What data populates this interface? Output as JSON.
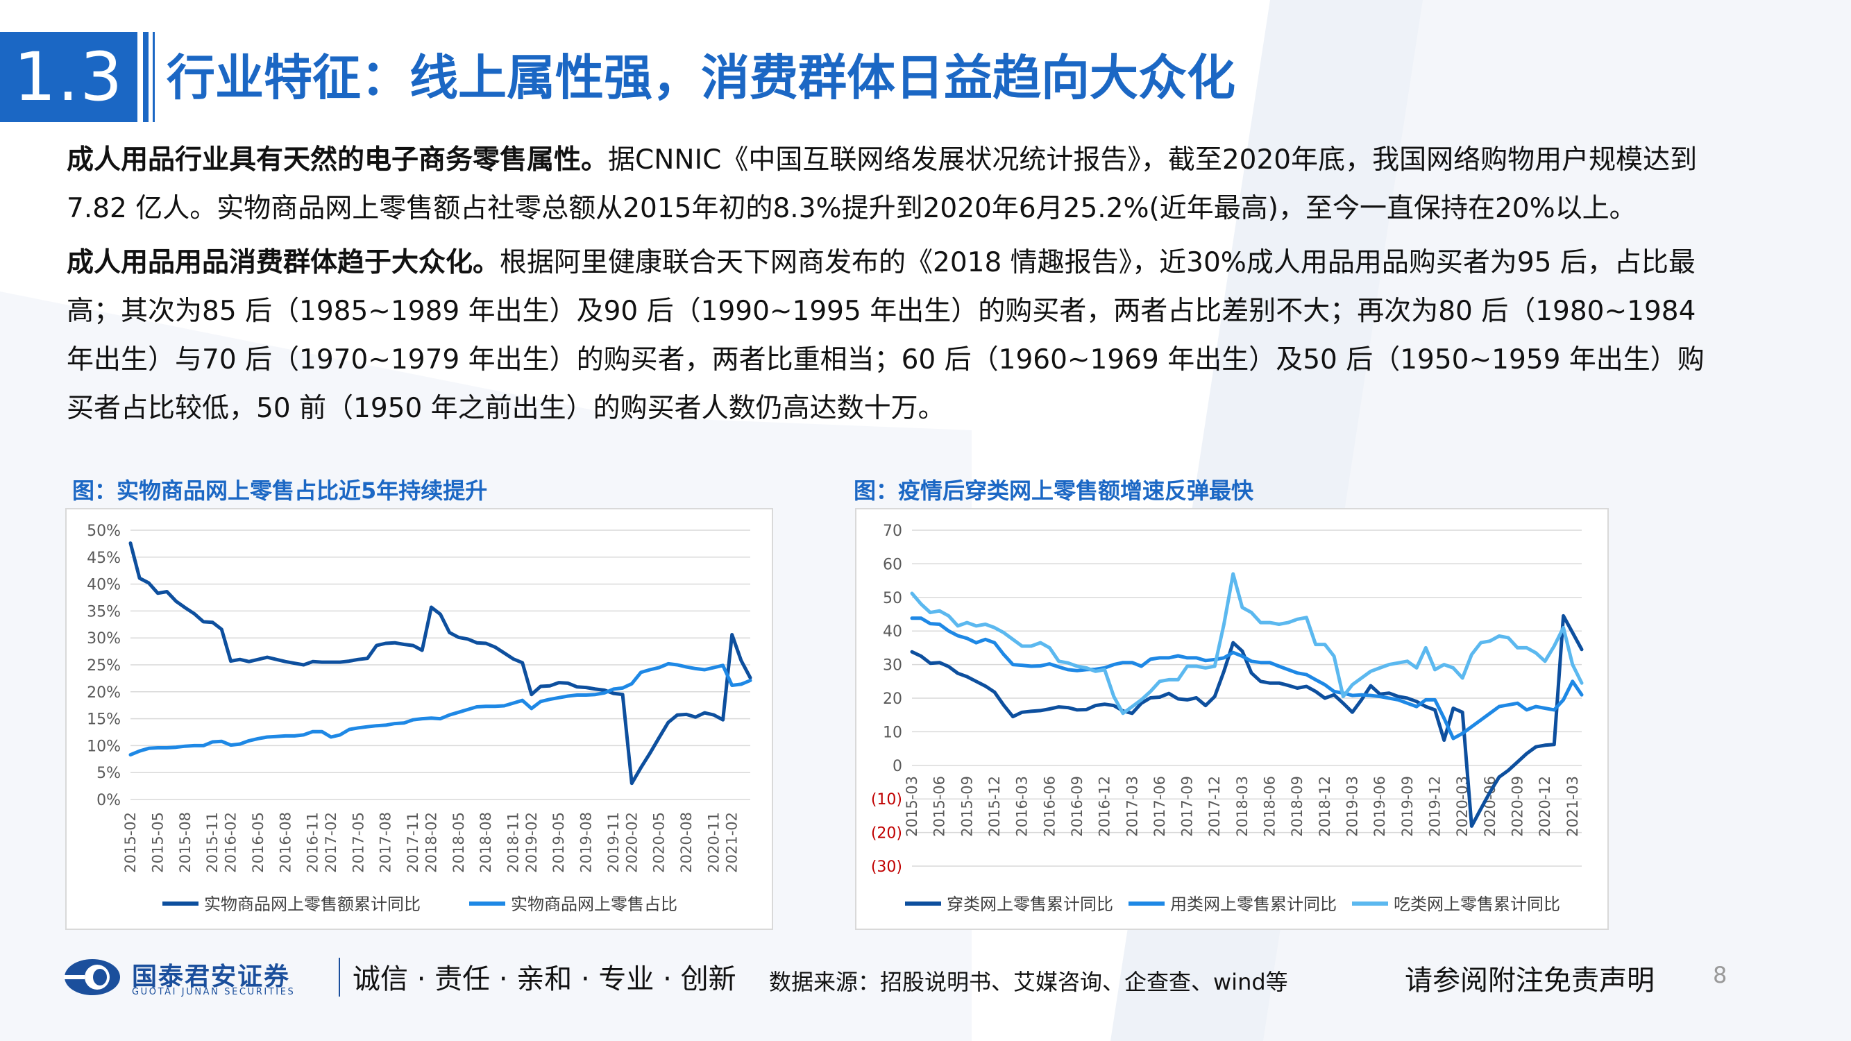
{
  "header": {
    "section_number": "1.3",
    "title": "行业特征：线上属性强，消费群体日益趋向大众化"
  },
  "paragraphs": [
    {
      "lead": "成人用品行业具有天然的电子商务零售属性。",
      "text": "据CNNIC《中国互联网络发展状况统计报告》，截至2020年底，我国网络购物用户规模达到7.82 亿人。实物商品网上零售额占社零总额从2015年初的8.3%提升到2020年6月25.2%(近年最高)，至今一直保持在20%以上。"
    },
    {
      "lead": "成人用品用品消费群体趋于大众化。",
      "text": "根据阿里健康联合天下网商发布的《2018 情趣报告》，近30%成人用品用品购买者为95 后，占比最高；其次为85 后（1985~1989 年出生）及90 后（1990~1995 年出生）的购买者，两者占比差别不大；再次为80 后（1980~1984 年出生）与70 后（1970~1979 年出生）的购买者，两者比重相当；60 后（1960~1969 年出生）及50 后（1950~1959 年出生）购买者占比较低，50 前（1950 年之前出生）的购买者人数仍高达数十万。"
    }
  ],
  "chart_titles": {
    "left": "图：实物商品网上零售占比近5年持续提升",
    "right": "图：疫情后穿类网上零售额增速反弹最快"
  },
  "chart_data": [
    {
      "type": "line",
      "x": [
        "2015-02",
        "2015-03",
        "2015-04",
        "2015-05",
        "2015-06",
        "2015-07",
        "2015-08",
        "2015-09",
        "2015-10",
        "2015-11",
        "2015-12",
        "2016-02",
        "2016-03",
        "2016-04",
        "2016-05",
        "2016-06",
        "2016-07",
        "2016-08",
        "2016-09",
        "2016-10",
        "2016-11",
        "2016-12",
        "2017-02",
        "2017-03",
        "2017-04",
        "2017-05",
        "2017-06",
        "2017-07",
        "2017-08",
        "2017-09",
        "2017-10",
        "2017-11",
        "2017-12",
        "2018-02",
        "2018-03",
        "2018-04",
        "2018-05",
        "2018-06",
        "2018-07",
        "2018-08",
        "2018-09",
        "2018-10",
        "2018-11",
        "2018-12",
        "2019-02",
        "2019-03",
        "2019-04",
        "2019-05",
        "2019-06",
        "2019-07",
        "2019-08",
        "2019-09",
        "2019-10",
        "2019-11",
        "2019-12",
        "2020-02",
        "2020-03",
        "2020-04",
        "2020-05",
        "2020-06",
        "2020-07",
        "2020-08",
        "2020-09",
        "2020-10",
        "2020-11",
        "2020-12",
        "2021-02",
        "2021-03",
        "2021-04"
      ],
      "x_tick_labels": [
        "2015-02",
        "2015-05",
        "2015-08",
        "2015-11",
        "2016-02",
        "2016-05",
        "2016-08",
        "2016-11",
        "2017-02",
        "2017-05",
        "2017-08",
        "2017-11",
        "2018-02",
        "2018-05",
        "2018-08",
        "2018-11",
        "2019-02",
        "2019-05",
        "2019-08",
        "2019-11",
        "2020-02",
        "2020-05",
        "2020-08",
        "2020-11",
        "2021-02"
      ],
      "y_tick_labels": [
        "50%",
        "45%",
        "40%",
        "35%",
        "30%",
        "25%",
        "20%",
        "15%",
        "10%",
        "5%",
        "0%"
      ],
      "ylim": [
        0,
        50
      ],
      "grid": "horizontal",
      "legend_position": "bottom",
      "series": [
        {
          "name": "实物商品网上零售额累计同比",
          "color": "#0d4f9e",
          "values": [
            47.6,
            41.1,
            40.2,
            38.3,
            38.6,
            36.8,
            35.6,
            34.5,
            33.0,
            32.9,
            31.6,
            25.7,
            26.0,
            25.6,
            26.0,
            26.4,
            26.0,
            25.6,
            25.3,
            25.0,
            25.6,
            25.5,
            25.5,
            25.5,
            25.7,
            26.0,
            26.2,
            28.6,
            29.0,
            29.1,
            28.8,
            28.6,
            27.7,
            35.7,
            34.4,
            31.0,
            30.1,
            29.8,
            29.1,
            29.0,
            28.3,
            27.2,
            26.1,
            25.4,
            19.5,
            21.0,
            21.1,
            21.7,
            21.6,
            20.9,
            20.8,
            20.5,
            20.3,
            19.7,
            19.5,
            3.0,
            5.9,
            8.6,
            11.5,
            14.3,
            15.7,
            15.8,
            15.3,
            16.1,
            15.7,
            14.8,
            30.6,
            25.8,
            22.6
          ]
        },
        {
          "name": "实物商品网上零售占比",
          "color": "#1e88e5",
          "values": [
            8.3,
            9.0,
            9.5,
            9.6,
            9.6,
            9.7,
            9.9,
            10.0,
            10.0,
            10.7,
            10.8,
            10.1,
            10.3,
            10.9,
            11.3,
            11.6,
            11.7,
            11.8,
            11.8,
            12.0,
            12.6,
            12.6,
            11.6,
            12.0,
            13.0,
            13.3,
            13.5,
            13.7,
            13.8,
            14.1,
            14.2,
            14.8,
            15.0,
            15.1,
            15.0,
            15.7,
            16.2,
            16.7,
            17.2,
            17.3,
            17.3,
            17.4,
            17.9,
            18.4,
            16.9,
            18.2,
            18.6,
            18.9,
            19.2,
            19.4,
            19.4,
            19.5,
            19.8,
            20.5,
            20.7,
            21.5,
            23.6,
            24.1,
            24.5,
            25.2,
            25.0,
            24.6,
            24.3,
            24.1,
            24.5,
            24.9,
            21.2,
            21.4,
            22.1
          ]
        }
      ]
    },
    {
      "type": "line",
      "x": [
        "2015-03",
        "2015-04",
        "2015-05",
        "2015-06",
        "2015-07",
        "2015-08",
        "2015-09",
        "2015-10",
        "2015-11",
        "2015-12",
        "2016-01",
        "2016-02",
        "2016-03",
        "2016-04",
        "2016-05",
        "2016-06",
        "2016-07",
        "2016-08",
        "2016-09",
        "2016-10",
        "2016-11",
        "2016-12",
        "2017-01",
        "2017-02",
        "2017-03",
        "2017-04",
        "2017-05",
        "2017-06",
        "2017-07",
        "2017-08",
        "2017-09",
        "2017-10",
        "2017-11",
        "2017-12",
        "2018-01",
        "2018-02",
        "2018-03",
        "2018-04",
        "2018-05",
        "2018-06",
        "2018-07",
        "2018-08",
        "2018-09",
        "2018-10",
        "2018-11",
        "2018-12",
        "2019-01",
        "2019-02",
        "2019-03",
        "2019-04",
        "2019-05",
        "2019-06",
        "2019-07",
        "2019-08",
        "2019-09",
        "2019-10",
        "2019-11",
        "2019-12",
        "2020-01",
        "2020-02",
        "2020-03",
        "2020-04",
        "2020-05",
        "2020-06",
        "2020-07",
        "2020-08",
        "2020-09",
        "2020-10",
        "2020-11",
        "2020-12",
        "2021-01",
        "2021-02",
        "2021-03",
        "2021-04"
      ],
      "x_tick_labels": [
        "2015-03",
        "2015-06",
        "2015-09",
        "2015-12",
        "2016-03",
        "2016-06",
        "2016-09",
        "2016-12",
        "2017-03",
        "2017-06",
        "2017-09",
        "2017-12",
        "2018-03",
        "2018-06",
        "2018-09",
        "2018-12",
        "2019-03",
        "2019-06",
        "2019-09",
        "2019-12",
        "2020-03",
        "2020-06",
        "2020-09",
        "2020-12",
        "2021-03"
      ],
      "y_tick_labels": [
        "70",
        "60",
        "50",
        "40",
        "30",
        "20",
        "10",
        "0",
        "(10)",
        "(20)",
        "(30)"
      ],
      "negative_label_color": "#c00000",
      "ylim": [
        -30,
        70
      ],
      "grid": "horizontal",
      "legend_position": "bottom",
      "series": [
        {
          "name": "穿类网上零售累计同比",
          "color": "#0d4f9e",
          "values": [
            33.8,
            32.5,
            30.4,
            30.6,
            29.4,
            27.4,
            26.4,
            25.0,
            23.6,
            21.8,
            17.9,
            14.5,
            15.8,
            16.1,
            16.3,
            16.8,
            17.4,
            17.2,
            16.5,
            16.6,
            17.8,
            18.2,
            17.8,
            16.2,
            15.5,
            18.5,
            20.1,
            20.3,
            21.4,
            19.8,
            19.5,
            20.1,
            17.8,
            20.5,
            28.0,
            36.5,
            34.0,
            27.5,
            25.0,
            24.5,
            24.5,
            23.8,
            23.0,
            23.5,
            22.0,
            20.0,
            21.0,
            18.5,
            15.8,
            19.5,
            23.7,
            21.2,
            21.5,
            20.5,
            20.0,
            19.0,
            17.5,
            16.5,
            7.5,
            17.0,
            15.8,
            -18.1,
            -13.0,
            -8.0,
            -3.5,
            -1.5,
            1.0,
            3.5,
            5.5,
            6.0,
            6.2,
            44.5,
            39.5,
            34.5
          ]
        },
        {
          "name": "用类网上零售累计同比",
          "color": "#1e88e5",
          "values": [
            43.8,
            43.8,
            42.2,
            42.0,
            40.0,
            38.6,
            37.8,
            36.5,
            37.5,
            36.5,
            33.0,
            30.0,
            29.8,
            29.5,
            29.6,
            30.2,
            29.3,
            28.5,
            28.2,
            28.5,
            28.6,
            29.0,
            30.0,
            30.6,
            30.6,
            29.5,
            31.6,
            32.0,
            32.0,
            32.6,
            32.0,
            32.0,
            31.2,
            31.5,
            32.0,
            33.6,
            32.5,
            31.0,
            30.6,
            30.6,
            29.5,
            28.5,
            27.5,
            27.0,
            25.5,
            24.0,
            22.0,
            21.5,
            20.8,
            21.0,
            20.8,
            20.5,
            20.0,
            19.5,
            18.5,
            17.5,
            19.5,
            19.5,
            14.0,
            8.0,
            9.5,
            11.5,
            13.5,
            15.5,
            17.5,
            18.0,
            18.5,
            16.5,
            17.5,
            17.0,
            16.5,
            19.5,
            25.0,
            21.0
          ]
        },
        {
          "name": "吃类网上零售累计同比",
          "color": "#5bb8ef",
          "values": [
            51.2,
            48.0,
            45.5,
            46.0,
            44.5,
            41.5,
            42.5,
            41.5,
            42.0,
            41.0,
            39.5,
            37.5,
            35.5,
            35.5,
            36.5,
            35.0,
            31.0,
            30.5,
            29.5,
            29.0,
            28.0,
            28.5,
            20.5,
            15.5,
            17.5,
            19.5,
            22.0,
            25.0,
            25.5,
            25.5,
            29.5,
            29.5,
            29.0,
            29.5,
            42.0,
            57.0,
            47.0,
            45.5,
            42.5,
            42.5,
            42.0,
            42.5,
            43.5,
            44.0,
            36.0,
            36.0,
            32.5,
            20.5,
            24.0,
            26.0,
            28.0,
            29.0,
            30.0,
            30.5,
            31.0,
            29.0,
            35.0,
            28.5,
            30.0,
            29.0,
            26.0,
            33.0,
            36.5,
            37.0,
            38.5,
            38.0,
            35.0,
            35.0,
            33.5,
            31.0,
            35.5,
            41.0,
            30.0,
            24.5
          ]
        }
      ]
    }
  ],
  "footer": {
    "logo_cn": "国泰君安证券",
    "logo_en": "GUOTAI JUNAN SECURITIES",
    "slogan": "诚信 · 责任 · 亲和 · 专业 · 创新",
    "source": "数据来源：招股说明书、艾媒咨询、企查查、wind等",
    "disclaimer": "请参阅附注免责声明",
    "page_number": "8"
  }
}
